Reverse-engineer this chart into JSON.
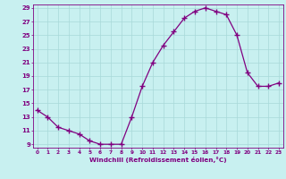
{
  "x": [
    0,
    1,
    2,
    3,
    4,
    5,
    6,
    7,
    8,
    9,
    10,
    11,
    12,
    13,
    14,
    15,
    16,
    17,
    18,
    19,
    20,
    21,
    22,
    23
  ],
  "y": [
    14.0,
    13.0,
    11.5,
    11.0,
    10.5,
    9.5,
    9.0,
    9.0,
    9.0,
    13.0,
    17.5,
    21.0,
    23.5,
    25.5,
    27.5,
    28.5,
    29.0,
    28.5,
    28.0,
    25.0,
    19.5,
    17.5,
    17.5,
    18.0
  ],
  "line_color": "#800080",
  "marker_color": "#800080",
  "bg_color": "#c8f0f0",
  "grid_color": "#a8d8d8",
  "axis_label_color": "#800080",
  "tick_label_color": "#800080",
  "xlabel": "Windchill (Refroidissement éolien,°C)",
  "ylim_min": 9,
  "ylim_max": 29,
  "xlim_min": 0,
  "xlim_max": 23,
  "yticks": [
    9,
    11,
    13,
    15,
    17,
    19,
    21,
    23,
    25,
    27,
    29
  ],
  "xticks": [
    0,
    1,
    2,
    3,
    4,
    5,
    6,
    7,
    8,
    9,
    10,
    11,
    12,
    13,
    14,
    15,
    16,
    17,
    18,
    19,
    20,
    21,
    22,
    23
  ]
}
